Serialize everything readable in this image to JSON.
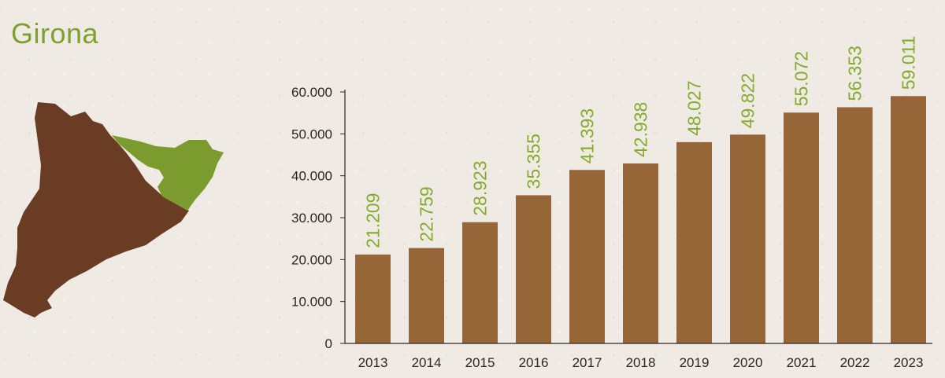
{
  "header": {
    "title": "Girona"
  },
  "colors": {
    "bar": "#966538",
    "value_label": "#84ab2d",
    "map_rest": "#6a3c24",
    "map_highlight": "#7c9b2e",
    "axis": "#2b2623"
  },
  "map": {
    "region_highlighted": "Girona",
    "icon": "catalonia-map-icon"
  },
  "chart_data": {
    "type": "bar",
    "title": "",
    "xlabel": "",
    "ylabel": "",
    "categories": [
      "2013",
      "2014",
      "2015",
      "2016",
      "2017",
      "2018",
      "2019",
      "2020",
      "2021",
      "2022",
      "2023"
    ],
    "values": [
      21209,
      22759,
      28923,
      35355,
      41393,
      42938,
      48027,
      49822,
      55072,
      56353,
      59011
    ],
    "value_labels": [
      "21.209",
      "22.759",
      "28.923",
      "35.355",
      "41.393",
      "42.938",
      "48.027",
      "49.822",
      "55.072",
      "56.353",
      "59.011"
    ],
    "yticks": [
      0,
      10000,
      20000,
      30000,
      40000,
      50000,
      60000
    ],
    "ytick_labels": [
      "0",
      "10.000",
      "20.000",
      "30.000",
      "40.000",
      "50.000",
      "60.000"
    ],
    "ylim": [
      0,
      60000
    ],
    "grid": false
  }
}
